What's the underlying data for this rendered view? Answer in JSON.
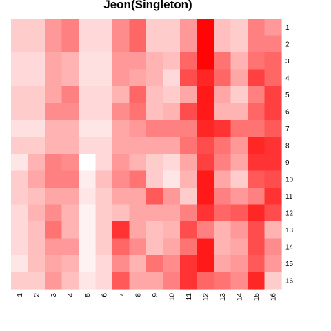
{
  "chart_data": {
    "type": "heatmap",
    "title": "Jeon(Singleton)",
    "color_scale": {
      "low": "#ffffff",
      "high": "#ff0000"
    },
    "value_range": [
      0,
      1
    ],
    "row_labels": [
      "1",
      "2",
      "3",
      "4",
      "5",
      "6",
      "7",
      "8",
      "9",
      "10",
      "11",
      "12",
      "13",
      "14",
      "15",
      "16"
    ],
    "col_labels": [
      "1",
      "2",
      "3",
      "4",
      "5",
      "6",
      "7",
      "8",
      "9",
      "10",
      "11",
      "12",
      "13",
      "14",
      "15",
      "16"
    ],
    "values": [
      [
        0.2,
        0.2,
        0.4,
        0.5,
        0.15,
        0.15,
        0.45,
        0.6,
        0.2,
        0.2,
        0.4,
        0.98,
        0.25,
        0.2,
        0.5,
        0.4
      ],
      [
        0.2,
        0.2,
        0.4,
        0.5,
        0.15,
        0.15,
        0.45,
        0.6,
        0.2,
        0.2,
        0.4,
        0.98,
        0.25,
        0.2,
        0.5,
        0.5
      ],
      [
        0.15,
        0.15,
        0.35,
        0.3,
        0.12,
        0.12,
        0.4,
        0.4,
        0.3,
        0.25,
        0.6,
        0.98,
        0.55,
        0.3,
        0.55,
        0.6
      ],
      [
        0.15,
        0.15,
        0.35,
        0.3,
        0.12,
        0.12,
        0.4,
        0.35,
        0.3,
        0.15,
        0.7,
        0.85,
        0.6,
        0.35,
        0.75,
        0.6
      ],
      [
        0.2,
        0.2,
        0.35,
        0.5,
        0.15,
        0.15,
        0.3,
        0.6,
        0.25,
        0.2,
        0.35,
        0.9,
        0.35,
        0.2,
        0.5,
        0.75
      ],
      [
        0.2,
        0.2,
        0.45,
        0.45,
        0.15,
        0.15,
        0.45,
        0.55,
        0.25,
        0.3,
        0.7,
        0.9,
        0.3,
        0.3,
        0.6,
        0.75
      ],
      [
        0.12,
        0.12,
        0.3,
        0.3,
        0.1,
        0.1,
        0.35,
        0.4,
        0.5,
        0.5,
        0.5,
        0.85,
        0.8,
        0.55,
        0.55,
        0.65
      ],
      [
        0.2,
        0.2,
        0.3,
        0.3,
        0.15,
        0.15,
        0.35,
        0.35,
        0.35,
        0.35,
        0.55,
        0.7,
        0.55,
        0.4,
        0.85,
        0.8
      ],
      [
        0.1,
        0.3,
        0.5,
        0.45,
        0.0,
        0.15,
        0.4,
        0.3,
        0.2,
        0.15,
        0.35,
        0.75,
        0.5,
        0.35,
        0.8,
        0.8
      ],
      [
        0.2,
        0.35,
        0.5,
        0.5,
        0.07,
        0.25,
        0.45,
        0.55,
        0.2,
        0.1,
        0.3,
        0.9,
        0.35,
        0.2,
        0.65,
        0.7
      ],
      [
        0.2,
        0.25,
        0.35,
        0.35,
        0.1,
        0.2,
        0.35,
        0.35,
        0.65,
        0.4,
        0.2,
        0.9,
        0.5,
        0.4,
        0.5,
        0.8
      ],
      [
        0.15,
        0.3,
        0.45,
        0.3,
        0.05,
        0.2,
        0.25,
        0.35,
        0.35,
        0.35,
        0.5,
        0.8,
        0.6,
        0.65,
        0.85,
        0.7
      ],
      [
        0.15,
        0.25,
        0.55,
        0.3,
        0.05,
        0.2,
        0.8,
        0.35,
        0.25,
        0.3,
        0.7,
        0.5,
        0.3,
        0.4,
        0.7,
        0.3
      ],
      [
        0.15,
        0.25,
        0.4,
        0.4,
        0.05,
        0.2,
        0.6,
        0.45,
        0.25,
        0.35,
        0.55,
        0.9,
        0.3,
        0.35,
        0.7,
        0.45
      ],
      [
        0.1,
        0.25,
        0.35,
        0.3,
        0.05,
        0.15,
        0.45,
        0.3,
        0.55,
        0.45,
        0.8,
        0.9,
        0.35,
        0.4,
        0.65,
        0.4
      ],
      [
        0.2,
        0.2,
        0.4,
        0.25,
        0.1,
        0.15,
        0.65,
        0.35,
        0.35,
        0.5,
        0.8,
        0.6,
        0.55,
        0.45,
        0.85,
        0.2
      ]
    ]
  }
}
